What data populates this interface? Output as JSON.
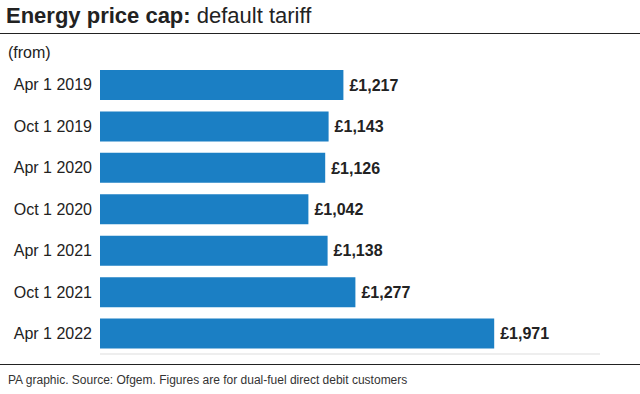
{
  "chart_data": {
    "type": "bar",
    "title": "Energy price cap: default tariff",
    "y_label": "(from)",
    "source": "PA graphic. Source: Ofgem. Figures are for dual-fuel direct debit customers",
    "orientation": "horizontal",
    "categories": [
      "Apr 1 2019",
      "Oct 1 2019",
      "Apr 1 2020",
      "Oct 1 2020",
      "Apr 1 2021",
      "Oct 1 2021",
      "Apr 1 2022"
    ],
    "values": [
      1217,
      1143,
      1126,
      1042,
      1138,
      1277,
      1971
    ],
    "value_labels": [
      "£1,217",
      "£1,143",
      "£1,126",
      "£1,042",
      "£1,138",
      "£1,277",
      "£1,971"
    ],
    "data_labels": true,
    "color": "#1b7fc4",
    "xlim": [
      0,
      2500
    ],
    "tick_labels": "y",
    "grid": false
  }
}
